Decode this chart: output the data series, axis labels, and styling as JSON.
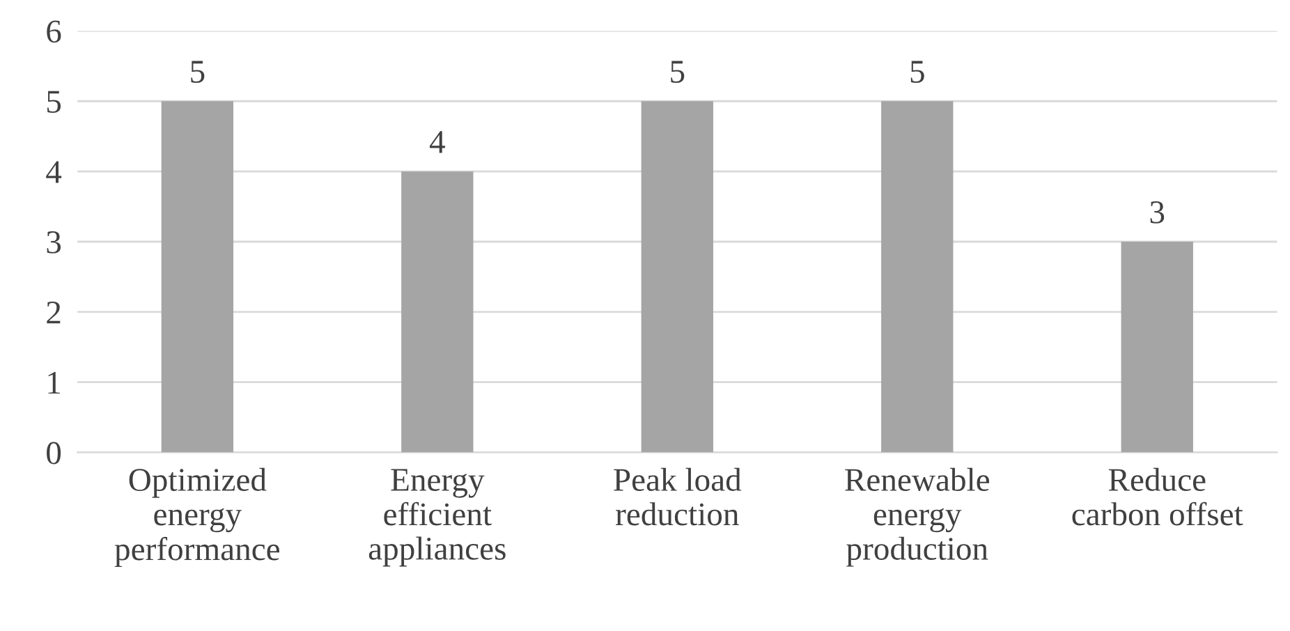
{
  "chart_data": {
    "type": "bar",
    "categories": [
      "Optimized\nenergy\nperformance",
      "Energy\nefficient\nappliances",
      "Peak load\nreduction",
      "Renewable\nenergy\nproduction",
      "Reduce\ncarbon offset"
    ],
    "values": [
      5,
      4,
      5,
      5,
      3
    ],
    "color": "#a5a5a5",
    "ylim": [
      0,
      6
    ],
    "yticks": [
      0,
      1,
      2,
      3,
      4,
      5,
      6
    ],
    "grid": "y",
    "data_labels": true,
    "legend": false
  }
}
